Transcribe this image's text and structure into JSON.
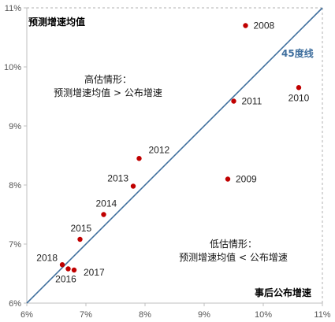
{
  "chart_data": {
    "type": "scatter",
    "xlabel": "事后公布增速",
    "ylabel": "预测增速均值",
    "xlim": [
      6,
      11
    ],
    "ylim": [
      6,
      11
    ],
    "x_ticks": [
      "6%",
      "7%",
      "8%",
      "9%",
      "10%",
      "11%"
    ],
    "y_ticks": [
      "6%",
      "7%",
      "8%",
      "9%",
      "10%",
      "11%"
    ],
    "points": [
      {
        "label": "2008",
        "x": 9.7,
        "y": 10.7
      },
      {
        "label": "2010",
        "x": 10.6,
        "y": 9.65
      },
      {
        "label": "2011",
        "x": 9.5,
        "y": 9.42
      },
      {
        "label": "2012",
        "x": 7.9,
        "y": 8.45
      },
      {
        "label": "2013",
        "x": 7.8,
        "y": 7.98
      },
      {
        "label": "2009",
        "x": 9.4,
        "y": 8.1
      },
      {
        "label": "2014",
        "x": 7.3,
        "y": 7.5
      },
      {
        "label": "2015",
        "x": 6.9,
        "y": 7.08
      },
      {
        "label": "2018",
        "x": 6.6,
        "y": 6.65
      },
      {
        "label": "2016",
        "x": 6.7,
        "y": 6.58
      },
      {
        "label": "2017",
        "x": 6.8,
        "y": 6.56
      }
    ],
    "reference_line": {
      "label": "45度线",
      "from": [
        6,
        6
      ],
      "to": [
        11,
        11
      ],
      "color": "#3f6f9e"
    },
    "point_color": "#c00000",
    "annotations": {
      "high_title": "高估情形：",
      "high_text": "预测增速均值 > 公布增速",
      "low_title": "低估情形：",
      "low_text": "预测增速均值 < 公布增速"
    }
  }
}
